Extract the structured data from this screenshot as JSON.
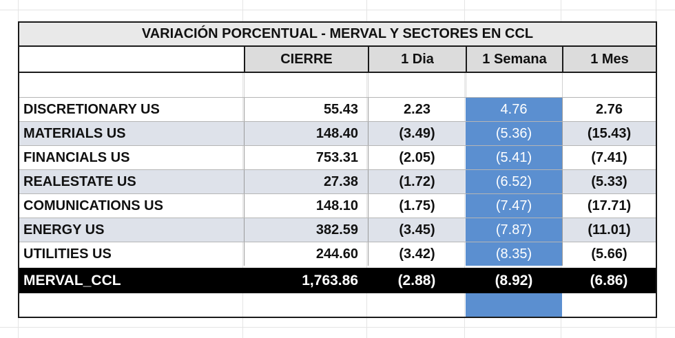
{
  "title": "VARIACIÓN PORCENTUAL  - MERVAL Y SECTORES EN CCL",
  "columns": [
    "CIERRE",
    "1 Dia",
    "1 Semana",
    "1 Mes"
  ],
  "rows": [
    {
      "name": "DISCRETIONARY US",
      "cierre": "55.43",
      "dia": "2.23",
      "semana": "4.76",
      "mes": "2.76"
    },
    {
      "name": "MATERIALS US",
      "cierre": "148.40",
      "dia": "(3.49)",
      "semana": "(5.36)",
      "mes": "(15.43)"
    },
    {
      "name": "FINANCIALS US",
      "cierre": "753.31",
      "dia": "(2.05)",
      "semana": "(5.41)",
      "mes": "(7.41)"
    },
    {
      "name": "REALESTATE US",
      "cierre": "27.38",
      "dia": "(1.72)",
      "semana": "(6.52)",
      "mes": "(5.33)"
    },
    {
      "name": "COMUNICATIONS US",
      "cierre": "148.10",
      "dia": "(1.75)",
      "semana": "(7.47)",
      "mes": "(17.71)"
    },
    {
      "name": "ENERGY US",
      "cierre": "382.59",
      "dia": "(3.45)",
      "semana": "(7.87)",
      "mes": "(11.01)"
    },
    {
      "name": "UTILITIES US",
      "cierre": "244.60",
      "dia": "(3.42)",
      "semana": "(8.35)",
      "mes": "(5.66)"
    }
  ],
  "total": {
    "name": "MERVAL_CCL",
    "cierre": "1,763.86",
    "dia": "(2.88)",
    "semana": "(8.92)",
    "mes": "(6.86)"
  },
  "colors": {
    "highlight": "#5b8fd0",
    "alt_row": "#dee2ea",
    "total_bg": "#000000"
  }
}
